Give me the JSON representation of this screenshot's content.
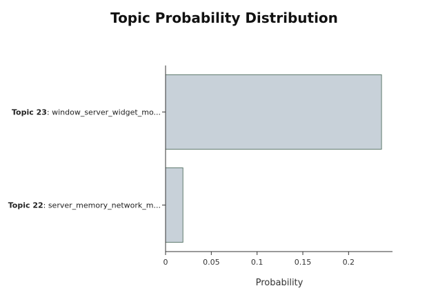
{
  "chart_data": {
    "type": "bar",
    "orientation": "horizontal",
    "title": "Topic Probability Distribution",
    "xlabel": "Probability",
    "ylabel": "",
    "xlim": [
      0,
      0.248
    ],
    "xticks": [
      0,
      0.05,
      0.1,
      0.15,
      0.2
    ],
    "xtick_labels": [
      "0",
      "0.05",
      "0.1",
      "0.15",
      "0.2"
    ],
    "categories": [
      {
        "id": "Topic 23",
        "name": "window_server_widget_mo..."
      },
      {
        "id": "Topic 22",
        "name": "server_memory_network_m..."
      }
    ],
    "values": [
      0.236,
      0.019
    ],
    "bar_color": "#c8d1d9",
    "bar_border_color": "#5f7a6e",
    "grid": false
  }
}
